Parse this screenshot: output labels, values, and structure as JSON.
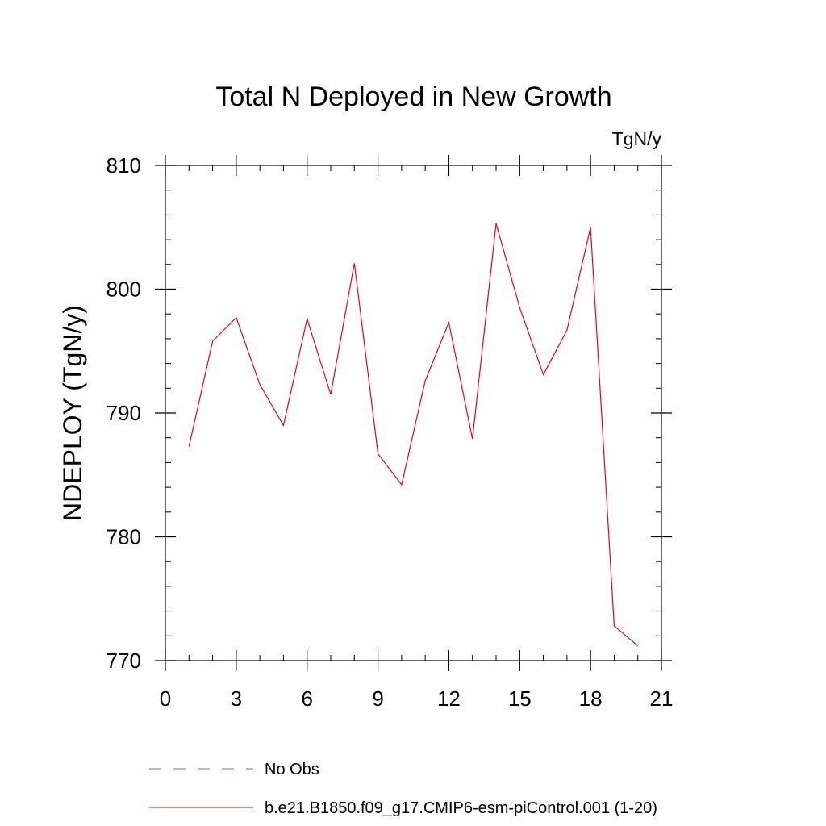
{
  "chart_data": {
    "type": "line",
    "title": "Total N Deployed in New Growth",
    "units_label": "TgN/y",
    "xlabel": "",
    "ylabel": "NDEPLOY  (TgN/y)",
    "xlim": [
      0,
      21
    ],
    "ylim": [
      770,
      810
    ],
    "x_major_ticks": [
      0,
      3,
      6,
      9,
      12,
      15,
      18,
      21
    ],
    "x_tick_labels": [
      "0",
      "3",
      "6",
      "9",
      "12",
      "15",
      "18",
      "21"
    ],
    "x_minor_step": 1,
    "y_major_ticks": [
      770,
      780,
      790,
      800,
      810
    ],
    "y_tick_labels": [
      "770",
      "780",
      "790",
      "800",
      "810"
    ],
    "y_minor_step": 2,
    "grid": false,
    "legend_position": "bottom-left",
    "series": [
      {
        "name": "b.e21.B1850.f09_g17.CMIP6-esm-piControl.001 (1-20)",
        "color": "#e8001c",
        "dash": "solid",
        "x": [
          1,
          2,
          3,
          4,
          5,
          6,
          7,
          8,
          9,
          10,
          11,
          12,
          13,
          14,
          15,
          16,
          17,
          18,
          19,
          20
        ],
        "values": [
          787.3,
          795.8,
          797.7,
          792.3,
          789.0,
          797.6,
          791.5,
          802.1,
          786.7,
          784.2,
          792.6,
          797.3,
          787.9,
          805.3,
          798.5,
          793.1,
          796.7,
          805.0,
          772.8,
          771.2
        ]
      }
    ],
    "legend": [
      {
        "label": "No Obs",
        "color": "#6b6bd6",
        "dash": "dashed"
      },
      {
        "label": "b.e21.B1850.f09_g17.CMIP6-esm-piControl.001 (1-20)",
        "color": "#e8001c",
        "dash": "solid"
      }
    ]
  }
}
